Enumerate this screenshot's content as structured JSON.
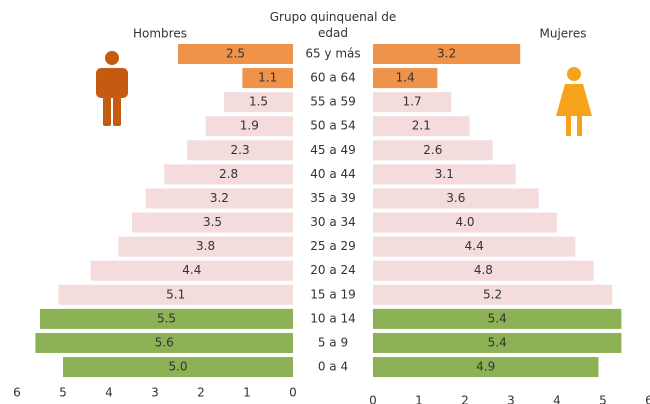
{
  "chart_data": {
    "type": "pyramid",
    "title": "Grupo quinquenal de edad",
    "categories": [
      "65 y más",
      "60 a 64",
      "55 a 59",
      "50 a 54",
      "45 a 49",
      "40 a 44",
      "35 a 39",
      "30 a 34",
      "25 a 29",
      "20 a 24",
      "15 a 19",
      "10 a 14",
      "5 a 9",
      "0 a 4"
    ],
    "colors": [
      "#f0934a",
      "#f0934a",
      "#f4dcdd",
      "#f4dcdd",
      "#f4dcdd",
      "#f4dcdd",
      "#f4dcdd",
      "#f4dcdd",
      "#f4dcdd",
      "#f4dcdd",
      "#f4dcdd",
      "#8db255",
      "#8db255",
      "#8db255"
    ],
    "series": [
      {
        "name": "Hombres",
        "side": "left",
        "values": [
          2.5,
          1.1,
          1.5,
          1.9,
          2.3,
          2.8,
          3.2,
          3.5,
          3.8,
          4.4,
          5.1,
          5.5,
          5.6,
          5.0
        ],
        "value_labels": [
          "2.5",
          "1.1",
          "1.5",
          "1.9",
          "2.3",
          "2.8",
          "3.2",
          "3.5",
          "3.8",
          "4.4",
          "5.1",
          "5.5",
          "5.6",
          "5.0"
        ],
        "xlim": [
          0,
          6
        ],
        "xticks": [
          6,
          5,
          4,
          3,
          2,
          1,
          0
        ]
      },
      {
        "name": "Mujeres",
        "side": "right",
        "values": [
          3.2,
          1.4,
          1.7,
          2.1,
          2.6,
          3.1,
          3.6,
          4.0,
          4.4,
          4.8,
          5.2,
          5.4,
          5.4,
          4.9
        ],
        "value_labels": [
          "3.2",
          "1.4",
          "1.7",
          "2.1",
          "2.6",
          "3.1",
          "3.6",
          "4.0",
          "4.4",
          "4.8",
          "5.2",
          "5.4",
          "5.4",
          "4.9"
        ],
        "xlim": [
          0,
          6
        ],
        "xticks": [
          0,
          1,
          2,
          3,
          4,
          5,
          6
        ]
      }
    ]
  }
}
